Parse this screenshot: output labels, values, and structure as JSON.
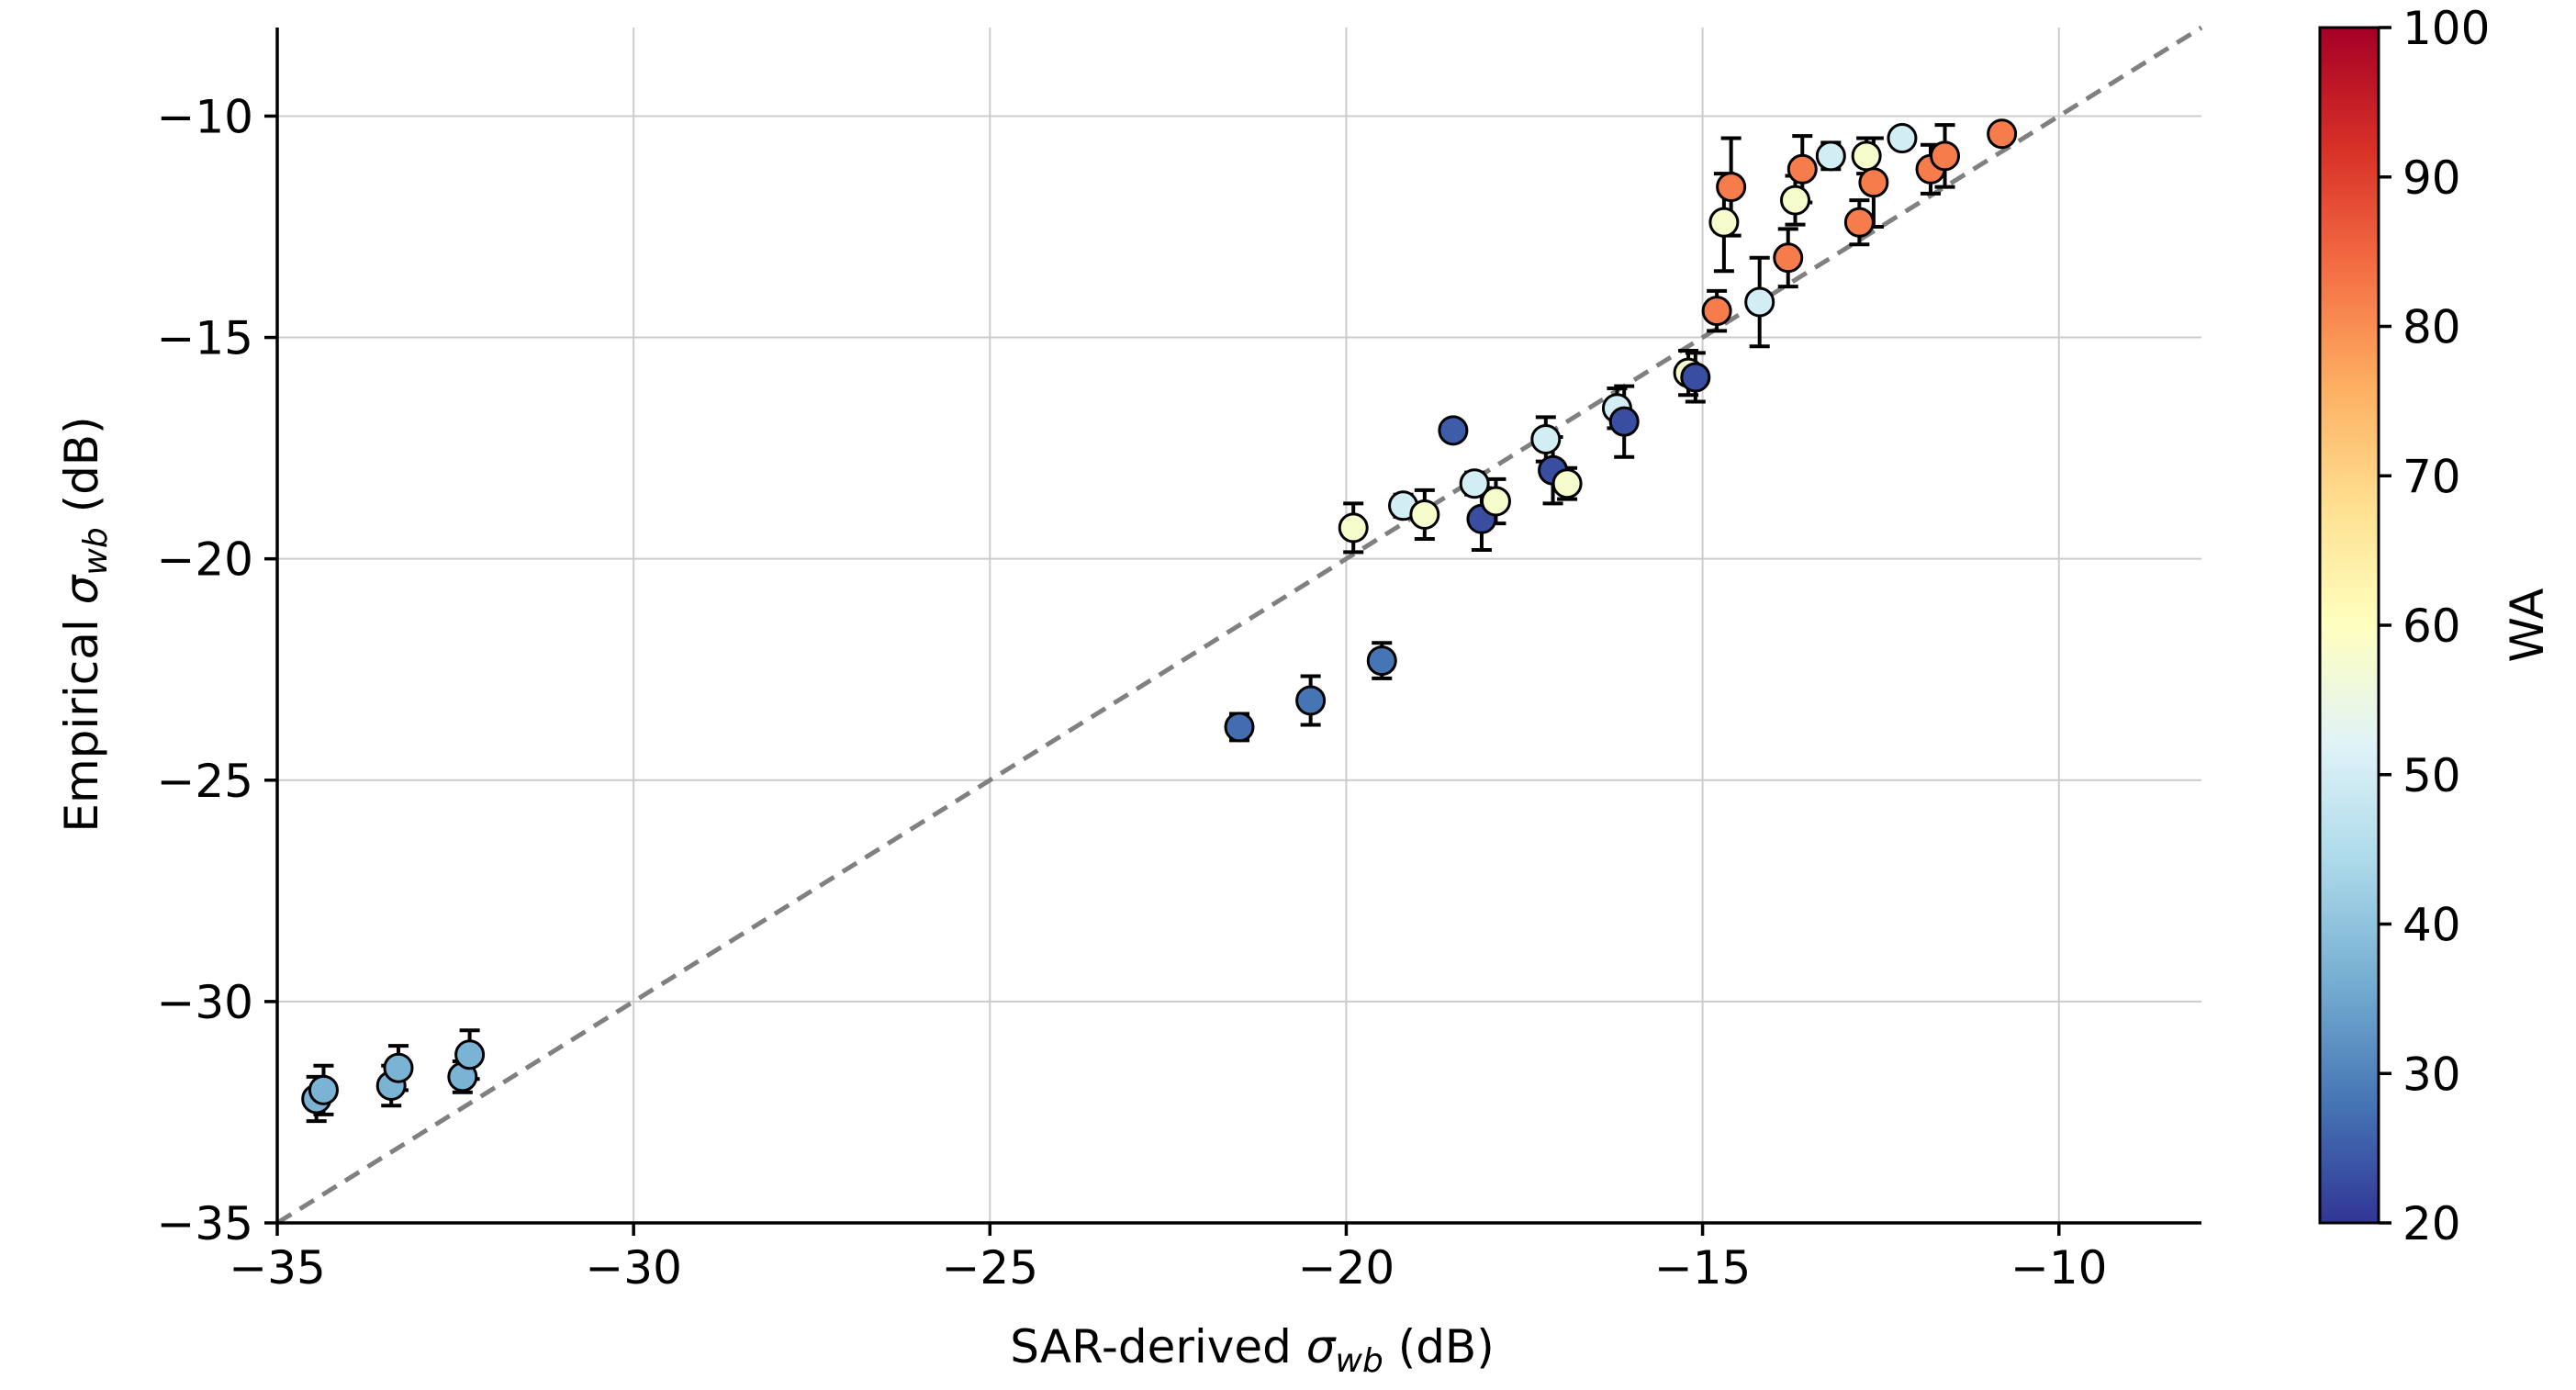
{
  "chart_data": {
    "type": "scatter",
    "title": "",
    "xlabel_prefix": "SAR-derived ",
    "xlabel_symbol": "σ",
    "xlabel_sub": "wb",
    "xlabel_suffix": " (dB)",
    "ylabel_prefix": "Empirical ",
    "ylabel_symbol": "σ",
    "ylabel_sub": "wb",
    "ylabel_suffix": " (dB)",
    "xlim": [
      -35,
      -8
    ],
    "ylim": [
      -35,
      -8
    ],
    "x_ticks": [
      -35,
      -30,
      -25,
      -20,
      -15,
      -10
    ],
    "x_tick_labels": [
      "−35",
      "−30",
      "−25",
      "−20",
      "−15",
      "−10"
    ],
    "y_ticks": [
      -35,
      -30,
      -25,
      -20,
      -15,
      -10
    ],
    "y_tick_labels": [
      "−35",
      "−30",
      "−25",
      "−20",
      "−15",
      "−10"
    ],
    "grid": true,
    "reference_line": "1:1 dashed",
    "colorbar": {
      "label": "WA",
      "range": [
        20,
        100
      ],
      "ticks": [
        20,
        30,
        40,
        50,
        60,
        70,
        80,
        90,
        100
      ],
      "tick_labels": [
        "20",
        "30",
        "40",
        "50",
        "60",
        "70",
        "80",
        "90",
        "100"
      ],
      "colormap": "RdYlBu_r"
    },
    "points": [
      {
        "x": -34.45,
        "y": -32.2,
        "err": 0.5,
        "wa": 37
      },
      {
        "x": -34.35,
        "y": -32.0,
        "err": 0.55,
        "wa": 37
      },
      {
        "x": -33.4,
        "y": -31.9,
        "err": 0.45,
        "wa": 37
      },
      {
        "x": -33.3,
        "y": -31.5,
        "err": 0.5,
        "wa": 37
      },
      {
        "x": -32.4,
        "y": -31.7,
        "err": 0.35,
        "wa": 37
      },
      {
        "x": -32.3,
        "y": -31.2,
        "err": 0.55,
        "wa": 37
      },
      {
        "x": -21.5,
        "y": -23.8,
        "err": 0.3,
        "wa": 27
      },
      {
        "x": -20.5,
        "y": -23.2,
        "err": 0.55,
        "wa": 28
      },
      {
        "x": -19.5,
        "y": -22.3,
        "err": 0.4,
        "wa": 28
      },
      {
        "x": -19.9,
        "y": -19.3,
        "err": 0.55,
        "wa": 58
      },
      {
        "x": -19.2,
        "y": -18.8,
        "err": 0.25,
        "wa": 50
      },
      {
        "x": -18.9,
        "y": -19.0,
        "err": 0.55,
        "wa": 58
      },
      {
        "x": -18.5,
        "y": -17.1,
        "err": 0.15,
        "wa": 25
      },
      {
        "x": -18.2,
        "y": -18.3,
        "err": 0.25,
        "wa": 50
      },
      {
        "x": -18.1,
        "y": -19.1,
        "err": 0.7,
        "wa": 23
      },
      {
        "x": -17.9,
        "y": -18.7,
        "err": 0.5,
        "wa": 58
      },
      {
        "x": -17.2,
        "y": -17.3,
        "err": 0.5,
        "wa": 50
      },
      {
        "x": -17.1,
        "y": -18.0,
        "err": 0.75,
        "wa": 23
      },
      {
        "x": -16.9,
        "y": -18.3,
        "err": 0.35,
        "wa": 58
      },
      {
        "x": -16.2,
        "y": -16.6,
        "err": 0.45,
        "wa": 50
      },
      {
        "x": -16.1,
        "y": -16.9,
        "err": 0.8,
        "wa": 23
      },
      {
        "x": -15.2,
        "y": -15.8,
        "err": 0.5,
        "wa": 58
      },
      {
        "x": -15.1,
        "y": -15.9,
        "err": 0.55,
        "wa": 23
      },
      {
        "x": -14.8,
        "y": -14.4,
        "err": 0.45,
        "wa": 82
      },
      {
        "x": -14.7,
        "y": -12.4,
        "err": 1.1,
        "wa": 58
      },
      {
        "x": -14.6,
        "y": -11.6,
        "err": 1.1,
        "wa": 82
      },
      {
        "x": -14.2,
        "y": -14.2,
        "err": 1.0,
        "wa": 50
      },
      {
        "x": -13.8,
        "y": -13.2,
        "err": 0.65,
        "wa": 82
      },
      {
        "x": -13.7,
        "y": -11.9,
        "err": 0.55,
        "wa": 58
      },
      {
        "x": -13.6,
        "y": -11.2,
        "err": 0.75,
        "wa": 82
      },
      {
        "x": -13.2,
        "y": -10.9,
        "err": 0.3,
        "wa": 50
      },
      {
        "x": -12.8,
        "y": -12.4,
        "err": 0.5,
        "wa": 82
      },
      {
        "x": -12.7,
        "y": -10.9,
        "err": 0.4,
        "wa": 58
      },
      {
        "x": -12.6,
        "y": -11.5,
        "err": 1.0,
        "wa": 82
      },
      {
        "x": -12.2,
        "y": -10.5,
        "err": 0.1,
        "wa": 50
      },
      {
        "x": -11.8,
        "y": -11.2,
        "err": 0.55,
        "wa": 82
      },
      {
        "x": -11.6,
        "y": -10.9,
        "err": 0.7,
        "wa": 82
      },
      {
        "x": -10.8,
        "y": -10.4,
        "err": 0.1,
        "wa": 82
      }
    ]
  }
}
